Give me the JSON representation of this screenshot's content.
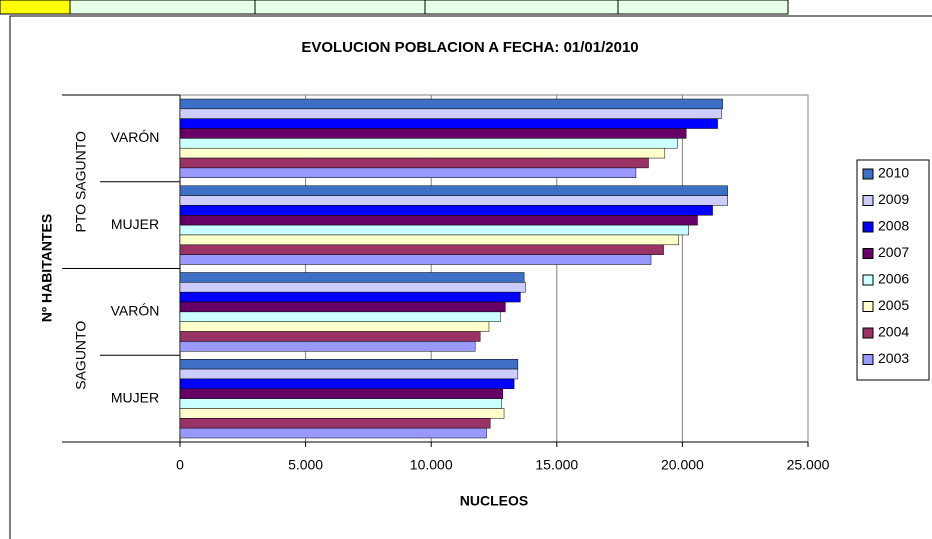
{
  "chart_data": {
    "type": "bar",
    "orientation": "horizontal",
    "title": "EVOLUCION POBLACION A FECHA: 01/01/2010",
    "x_label": "NUCLEOS",
    "y_label": "Nº HABITANTES",
    "groups": [
      "PTO SAGUNTO",
      "SAGUNTO"
    ],
    "categories": [
      "VARÓN",
      "MUJER",
      "VARÓN",
      "MUJER"
    ],
    "series": [
      {
        "name": "2010",
        "color": "#3d6fc4",
        "values": [
          21600,
          21800,
          13700,
          13450
        ]
      },
      {
        "name": "2009",
        "color": "#ccccff",
        "values": [
          21550,
          21800,
          13750,
          13450
        ]
      },
      {
        "name": "2008",
        "color": "#0000ff",
        "values": [
          21400,
          21200,
          13550,
          13300
        ]
      },
      {
        "name": "2007",
        "color": "#660066",
        "values": [
          20150,
          20600,
          12950,
          12850
        ]
      },
      {
        "name": "2006",
        "color": "#ccffff",
        "values": [
          19800,
          20250,
          12750,
          12800
        ]
      },
      {
        "name": "2005",
        "color": "#ffffcc",
        "values": [
          19300,
          19850,
          12300,
          12900
        ]
      },
      {
        "name": "2004",
        "color": "#993366",
        "values": [
          18650,
          19250,
          11950,
          12350
        ]
      },
      {
        "name": "2003",
        "color": "#9999ff",
        "values": [
          18150,
          18750,
          11750,
          12200
        ]
      }
    ],
    "xlim": [
      0,
      25000
    ],
    "xticks": [
      0,
      {
        "value": 5000,
        "label": "5.000"
      },
      {
        "value": 10000,
        "label": "10.000"
      },
      {
        "value": 15000,
        "label": "15.000"
      },
      {
        "value": 20000,
        "label": "20.000"
      },
      {
        "value": 25000,
        "label": "25.000"
      }
    ],
    "grid": true,
    "legend": "right"
  }
}
